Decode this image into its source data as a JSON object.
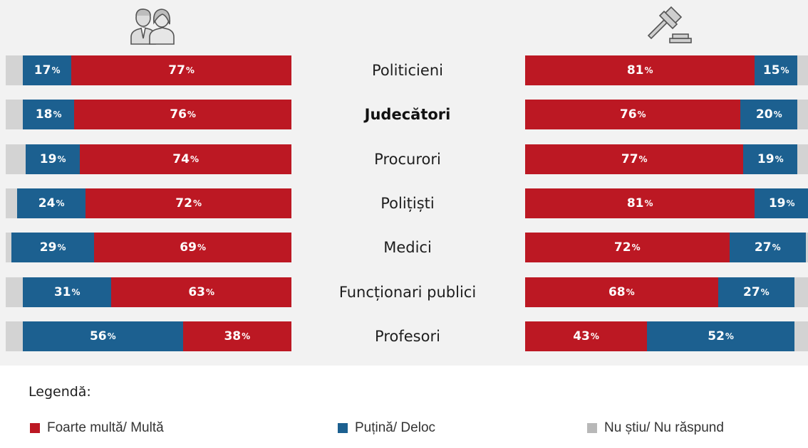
{
  "colors": {
    "red": "#bc1823",
    "blue": "#1c6090",
    "gray": "#d3d3d3",
    "panel": "#f2f2f2"
  },
  "icons": {
    "left": "people-icon",
    "right": "gavel-icon"
  },
  "legend": {
    "title": "Legendă:",
    "items": [
      {
        "label": "Foarte multă/ Multă",
        "color": "#bc1823"
      },
      {
        "label": "Puțină/ Deloc",
        "color": "#1c6090"
      },
      {
        "label": "Nu știu/ Nu răspund",
        "color": "#b8b8b8"
      }
    ]
  },
  "chart_data": [
    {
      "type": "bar",
      "orientation": "horizontal",
      "stacked": true,
      "panel": "left",
      "icon": "people-icon",
      "categories": [
        "Politicieni",
        "Judecători",
        "Procurori",
        "Polițiști",
        "Medici",
        "Funcționari publici",
        "Profesori"
      ],
      "series": [
        {
          "name": "Nu știu/ Nu răspund",
          "values": [
            6,
            6,
            7,
            4,
            2,
            6,
            6
          ]
        },
        {
          "name": "Puțină/ Deloc",
          "values": [
            17,
            18,
            19,
            24,
            29,
            31,
            56
          ]
        },
        {
          "name": "Foarte multă/ Multă",
          "values": [
            77,
            76,
            74,
            72,
            69,
            63,
            38
          ]
        }
      ],
      "value_suffix": "%"
    },
    {
      "type": "bar",
      "orientation": "horizontal",
      "stacked": true,
      "panel": "right",
      "icon": "gavel-icon",
      "categories": [
        "Politicieni",
        "Judecători",
        "Procurori",
        "Polițiști",
        "Medici",
        "Funcționari publici",
        "Profesori"
      ],
      "series": [
        {
          "name": "Foarte multă/ Multă",
          "values": [
            81,
            76,
            77,
            81,
            72,
            68,
            43
          ]
        },
        {
          "name": "Puțină/ Deloc",
          "values": [
            15,
            20,
            19,
            19,
            27,
            27,
            52
          ]
        },
        {
          "name": "Nu știu/ Nu răspund",
          "values": [
            4,
            4,
            4,
            0,
            1,
            5,
            5
          ]
        }
      ],
      "value_suffix": "%"
    }
  ],
  "highlight_category": "Judecători"
}
